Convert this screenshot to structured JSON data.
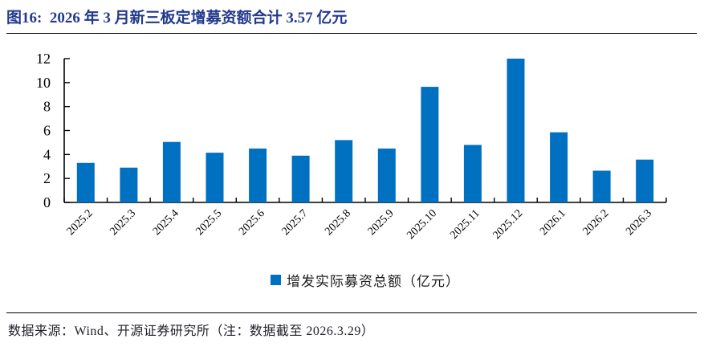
{
  "figure": {
    "title": "图16:  2026 年 3 月新三板定增募资额合计 3.57 亿元",
    "source_note": "数据来源：Wind、开源证券研究所（注：数据截至 2026.3.29）"
  },
  "legend": {
    "label": "增发实际募资总额（亿元）"
  },
  "colors": {
    "bar": "#0070C0",
    "title": "#233A8C",
    "axis": "#000000",
    "tick_text": "#000000"
  },
  "chart_data": {
    "type": "bar",
    "title": "2026 年 3 月新三板定增募资额合计 3.57 亿元",
    "categories": [
      "2025.2",
      "2025.3",
      "2025.4",
      "2025.5",
      "2025.6",
      "2025.7",
      "2025.8",
      "2025.9",
      "2025.10",
      "2025.11",
      "2025.12",
      "2026.1",
      "2026.2",
      "2026.3"
    ],
    "values": [
      3.3,
      2.9,
      5.05,
      4.15,
      4.5,
      3.9,
      5.2,
      4.5,
      9.65,
      4.8,
      12.0,
      5.85,
      2.65,
      3.57
    ],
    "series_name": "增发实际募资总额（亿元）",
    "xlabel": "",
    "ylabel": "",
    "ylim": [
      0,
      12
    ],
    "ytick_step": 2,
    "yticks": [
      0,
      2,
      4,
      6,
      8,
      10,
      12
    ],
    "grid": false,
    "legend_position": "bottom-center"
  }
}
